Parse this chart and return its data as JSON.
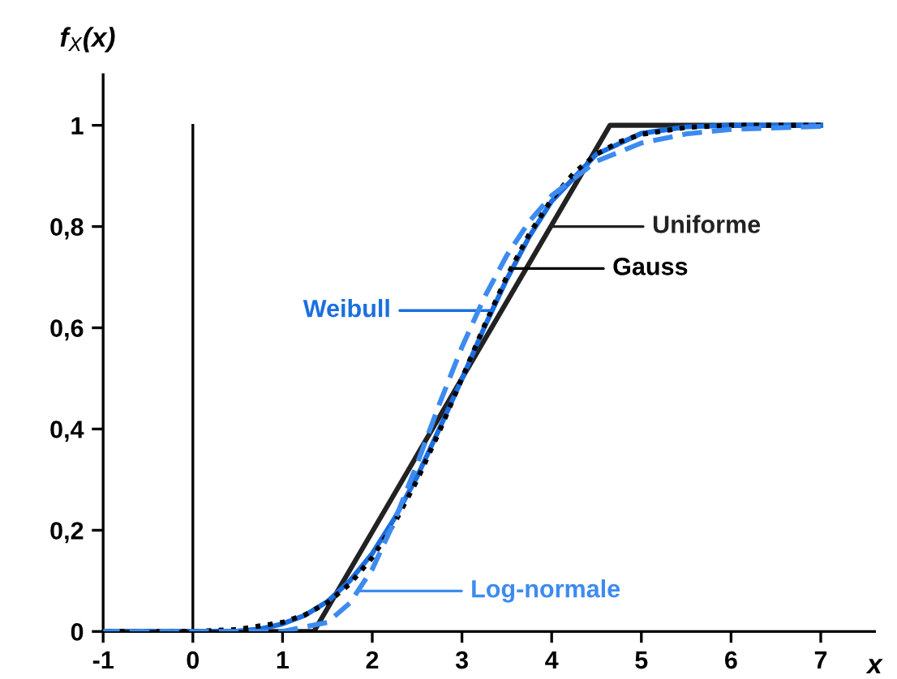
{
  "chart_data": {
    "type": "line",
    "ylabel": "f$_{X}$(x)",
    "xlabel": "x",
    "xlim": [
      -1,
      7.6
    ],
    "ylim": [
      0,
      1.1
    ],
    "xticks": [
      -1,
      0,
      1,
      2,
      3,
      4,
      5,
      6,
      7
    ],
    "yticks": [
      {
        "value": 0,
        "label": "0"
      },
      {
        "value": 0.2,
        "label": "0,2"
      },
      {
        "value": 0.4,
        "label": "0,4"
      },
      {
        "value": 0.6,
        "label": "0,6"
      },
      {
        "value": 0.8,
        "label": "0,8"
      },
      {
        "value": 1,
        "label": "1"
      }
    ],
    "grid": false,
    "legend": "right",
    "marker": "none",
    "series": [
      {
        "name": "Uniforme",
        "color": "#222222",
        "line_style": "solid",
        "x": [
          -1,
          1.35,
          4.65,
          7
        ],
        "values": [
          0,
          0,
          1,
          1
        ]
      },
      {
        "name": "Gauss",
        "color": "#000000",
        "line_style": "dotted",
        "x": [
          -1,
          0,
          0.5,
          1,
          1.25,
          1.5,
          1.75,
          2,
          2.25,
          2.5,
          2.75,
          3,
          3.25,
          3.5,
          3.75,
          4,
          4.25,
          4.5,
          4.75,
          5,
          5.5,
          6,
          7
        ],
        "values": [
          0,
          0,
          0.004,
          0.018,
          0.033,
          0.057,
          0.094,
          0.146,
          0.215,
          0.299,
          0.396,
          0.5,
          0.604,
          0.701,
          0.785,
          0.854,
          0.906,
          0.943,
          0.967,
          0.982,
          0.996,
          1,
          1
        ]
      },
      {
        "name": "Weibull",
        "color": "#1a6fe0",
        "line_style": "solid",
        "x": [
          -1,
          0,
          0.5,
          0.75,
          1,
          1.25,
          1.5,
          1.75,
          2,
          2.25,
          2.5,
          2.75,
          3,
          3.25,
          3.5,
          3.75,
          4,
          4.5,
          5,
          5.5,
          6,
          7
        ],
        "values": [
          0,
          0,
          0.001,
          0.005,
          0.015,
          0.032,
          0.059,
          0.1,
          0.154,
          0.224,
          0.306,
          0.401,
          0.499,
          0.601,
          0.696,
          0.78,
          0.85,
          0.943,
          0.984,
          0.997,
          1,
          1
        ]
      },
      {
        "name": "Log-normale",
        "color": "#3d8bf0",
        "line_style": "dashed",
        "x": [
          -1,
          0,
          1,
          1.5,
          1.75,
          2,
          2.25,
          2.5,
          2.75,
          3,
          3.25,
          3.5,
          3.75,
          4,
          4.5,
          5,
          5.5,
          6,
          7
        ],
        "values": [
          0,
          0,
          0,
          0.018,
          0.056,
          0.123,
          0.219,
          0.331,
          0.45,
          0.562,
          0.66,
          0.743,
          0.81,
          0.861,
          0.929,
          0.965,
          0.983,
          0.992,
          0.998
        ]
      }
    ],
    "ref_lines": [
      {
        "axis": "x",
        "value": 0,
        "color": "#000000"
      }
    ]
  }
}
